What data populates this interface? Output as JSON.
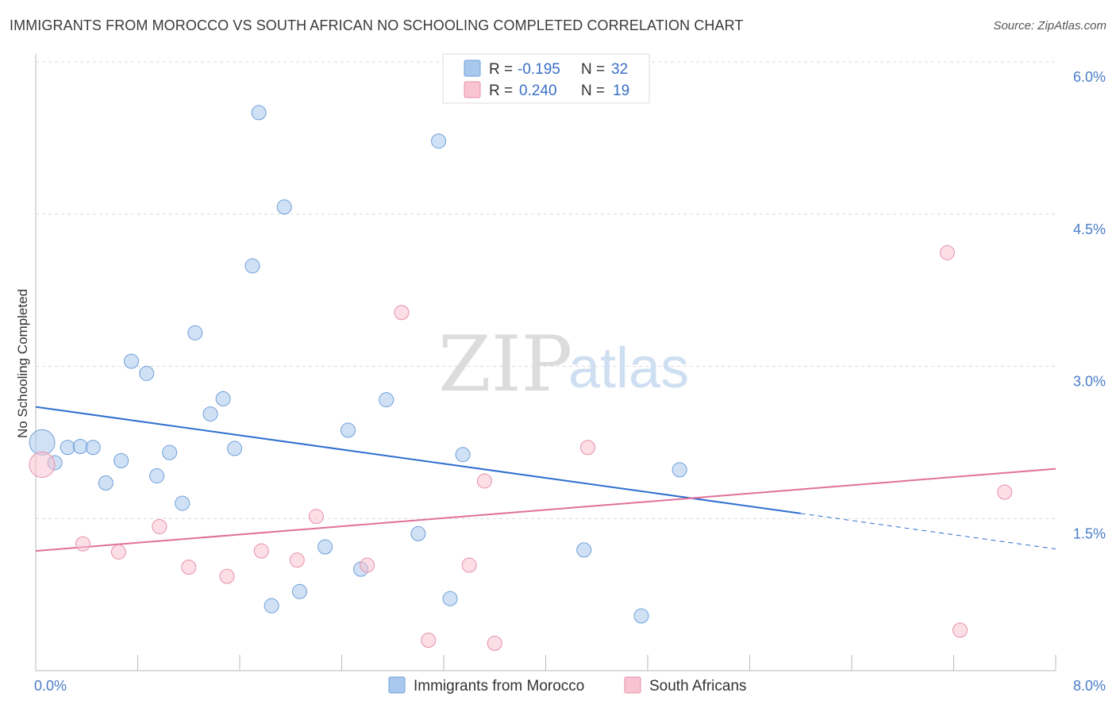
{
  "title": "IMMIGRANTS FROM MOROCCO VS SOUTH AFRICAN NO SCHOOLING COMPLETED CORRELATION CHART",
  "source": "Source: ZipAtlas.com",
  "watermark": {
    "zip": "ZIP",
    "atlas": "atlas"
  },
  "chart_data": {
    "type": "scatter",
    "ylabel": "No Schooling Completed",
    "xlim": [
      0,
      8
    ],
    "ylim": [
      0,
      6.0
    ],
    "x_tick_labels": [
      {
        "value": 0,
        "label": "0.0%"
      },
      {
        "value": 8,
        "label": "8.0%"
      }
    ],
    "y_tick_labels": [
      {
        "value": 1.5,
        "label": "1.5%"
      },
      {
        "value": 3.0,
        "label": "3.0%"
      },
      {
        "value": 4.5,
        "label": "4.5%"
      },
      {
        "value": 6.0,
        "label": "6.0%"
      }
    ],
    "grid": "horizontal-dashed",
    "legend_position": "top-center",
    "series": [
      {
        "name": "Immigrants from Morocco",
        "color": "#a9c8ee",
        "stroke": "#6f9fd8",
        "line_color": "#2f6fd0",
        "r_label": "R =",
        "r_value": "-0.195",
        "n_label": "N =",
        "n_value": "32",
        "trend": {
          "x0": 0.0,
          "y0": 2.6,
          "x1": 6.0,
          "y1": 1.55,
          "dash_to_x": 8.0,
          "dash_to_y": 1.2
        },
        "points": [
          {
            "x": 0.05,
            "y": 2.25,
            "big": true
          },
          {
            "x": 0.15,
            "y": 2.05
          },
          {
            "x": 0.25,
            "y": 2.2
          },
          {
            "x": 0.35,
            "y": 2.21
          },
          {
            "x": 0.45,
            "y": 2.2
          },
          {
            "x": 0.55,
            "y": 1.85
          },
          {
            "x": 0.67,
            "y": 2.07
          },
          {
            "x": 0.75,
            "y": 3.05
          },
          {
            "x": 0.87,
            "y": 2.93
          },
          {
            "x": 0.95,
            "y": 1.92
          },
          {
            "x": 1.05,
            "y": 2.15
          },
          {
            "x": 1.15,
            "y": 1.65
          },
          {
            "x": 1.25,
            "y": 3.33
          },
          {
            "x": 1.37,
            "y": 2.53
          },
          {
            "x": 1.47,
            "y": 2.68
          },
          {
            "x": 1.56,
            "y": 2.19
          },
          {
            "x": 1.7,
            "y": 3.99
          },
          {
            "x": 1.75,
            "y": 5.5
          },
          {
            "x": 1.85,
            "y": 0.64
          },
          {
            "x": 1.95,
            "y": 4.57
          },
          {
            "x": 2.07,
            "y": 0.78
          },
          {
            "x": 2.27,
            "y": 1.22
          },
          {
            "x": 2.45,
            "y": 2.37
          },
          {
            "x": 2.55,
            "y": 1.0
          },
          {
            "x": 2.75,
            "y": 2.67
          },
          {
            "x": 3.0,
            "y": 1.35
          },
          {
            "x": 3.16,
            "y": 5.22
          },
          {
            "x": 3.25,
            "y": 0.71
          },
          {
            "x": 3.35,
            "y": 2.13
          },
          {
            "x": 4.3,
            "y": 1.19
          },
          {
            "x": 4.75,
            "y": 0.54
          },
          {
            "x": 5.05,
            "y": 1.98
          }
        ]
      },
      {
        "name": "South Africans",
        "color": "#f8c3d2",
        "stroke": "#e890ab",
        "line_color": "#e0709a",
        "r_label": "R =",
        "r_value": "0.240",
        "n_label": "N =",
        "n_value": "19",
        "trend": {
          "x0": 0.0,
          "y0": 1.18,
          "x1": 8.0,
          "y1": 1.99
        },
        "points": [
          {
            "x": 0.05,
            "y": 2.03,
            "big": true
          },
          {
            "x": 0.37,
            "y": 1.25
          },
          {
            "x": 0.65,
            "y": 1.17
          },
          {
            "x": 0.97,
            "y": 1.42
          },
          {
            "x": 1.2,
            "y": 1.02
          },
          {
            "x": 1.5,
            "y": 0.93
          },
          {
            "x": 1.77,
            "y": 1.18
          },
          {
            "x": 2.05,
            "y": 1.09
          },
          {
            "x": 2.2,
            "y": 1.52
          },
          {
            "x": 2.6,
            "y": 1.04
          },
          {
            "x": 2.87,
            "y": 3.53
          },
          {
            "x": 3.08,
            "y": 0.3
          },
          {
            "x": 3.4,
            "y": 1.04
          },
          {
            "x": 3.52,
            "y": 1.87
          },
          {
            "x": 3.6,
            "y": 0.27
          },
          {
            "x": 4.33,
            "y": 2.2
          },
          {
            "x": 7.15,
            "y": 4.12
          },
          {
            "x": 7.25,
            "y": 0.4
          },
          {
            "x": 7.6,
            "y": 1.76
          }
        ]
      }
    ]
  }
}
